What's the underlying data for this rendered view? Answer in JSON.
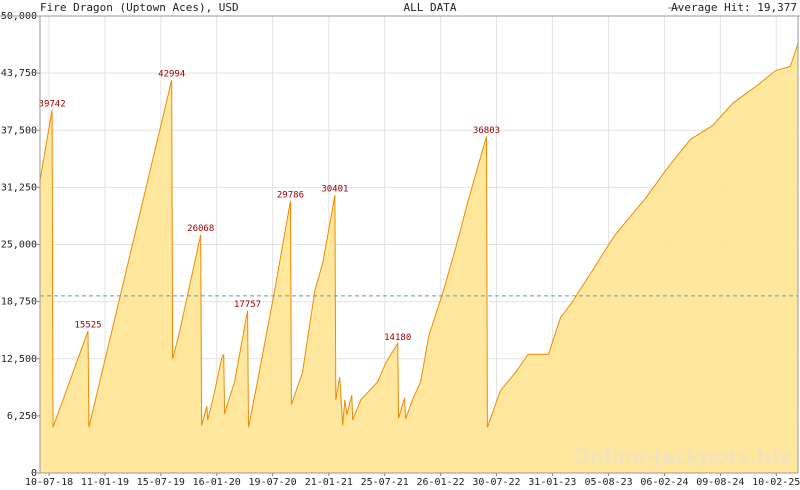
{
  "chart_data": {
    "type": "area",
    "title": "Fire Dragon (Uptown Aces), USD",
    "subtitle": "ALL DATA",
    "watermark": "Online-Jackpots.biz",
    "average": {
      "label": "Average Hit: 19,377",
      "value": 19377,
      "color": "#5a9ab5"
    },
    "color": "#f08a00",
    "fill": "#ffe592",
    "grid": true,
    "xlim": [
      "2018-06-10",
      "2025-04-23"
    ],
    "xticks": [
      {
        "value": "2018-07-10",
        "label": "10-07-18"
      },
      {
        "value": "2019-01-11",
        "label": "11-01-19"
      },
      {
        "value": "2019-07-15",
        "label": "15-07-19"
      },
      {
        "value": "2020-01-16",
        "label": "16-01-20"
      },
      {
        "value": "2020-07-19",
        "label": "19-07-20"
      },
      {
        "value": "2021-01-21",
        "label": "21-01-21"
      },
      {
        "value": "2021-07-25",
        "label": "25-07-21"
      },
      {
        "value": "2022-01-26",
        "label": "26-01-22"
      },
      {
        "value": "2022-07-30",
        "label": "30-07-22"
      },
      {
        "value": "2023-01-31",
        "label": "31-01-23"
      },
      {
        "value": "2023-08-05",
        "label": "05-08-23"
      },
      {
        "value": "2024-02-06",
        "label": "06-02-24"
      },
      {
        "value": "2024-08-09",
        "label": "09-08-24"
      },
      {
        "value": "2025-02-10",
        "label": "10-02-25"
      }
    ],
    "ylim": [
      0,
      50000
    ],
    "yticks": [
      0,
      {
        "value": 6250,
        "label": "6,250"
      },
      {
        "value": 12500,
        "label": "12,500"
      },
      {
        "value": 18750,
        "label": "18,750"
      },
      {
        "value": 25000,
        "label": "25,000"
      },
      {
        "value": 31250,
        "label": "31,250"
      },
      {
        "value": 37500,
        "label": "37,500"
      },
      {
        "value": 43750,
        "label": "43,750"
      },
      {
        "value": 50000,
        "label": "50,000"
      }
    ],
    "x": [
      "2018-06-10",
      "2018-07-20",
      "2018-07-23",
      "2018-11-16",
      "2018-11-19",
      "2019-08-20",
      "2019-08-23",
      "2019-09-12",
      "2019-10-15",
      "2019-11-24",
      "2019-11-27",
      "2019-12-14",
      "2019-12-17",
      "2020-01-03",
      "2020-02-01",
      "2020-02-08",
      "2020-02-11",
      "2020-03-15",
      "2020-04-27",
      "2020-04-30",
      "2020-05-30",
      "2020-07-26",
      "2020-09-16",
      "2020-09-19",
      "2020-10-26",
      "2020-12-06",
      "2021-01-01",
      "2021-02-10",
      "2021-02-13",
      "2021-02-26",
      "2021-03-08",
      "2021-03-15",
      "2021-03-22",
      "2021-04-07",
      "2021-04-10",
      "2021-05-07",
      "2021-07-02",
      "2021-07-28",
      "2021-09-06",
      "2021-09-09",
      "2021-09-29",
      "2021-10-02",
      "2021-10-25",
      "2021-11-21",
      "2021-12-18",
      "2022-02-05",
      "2022-03-20",
      "2022-04-29",
      "2022-06-27",
      "2022-06-30",
      "2022-08-12",
      "2022-10-01",
      "2022-11-12",
      "2023-01-18",
      "2023-02-27",
      "2023-04-08",
      "2023-06-19",
      "2023-08-25",
      "2023-12-04",
      "2024-02-19",
      "2024-05-02",
      "2024-07-14",
      "2024-09-21",
      "2024-12-13",
      "2025-02-07",
      "2025-03-29",
      "2025-04-23"
    ],
    "values": [
      32000,
      39742,
      5000,
      15525,
      5000,
      42994,
      12500,
      15000,
      20000,
      26068,
      5200,
      7300,
      5800,
      8000,
      12500,
      13000,
      6500,
      10000,
      17757,
      5000,
      10000,
      20000,
      29786,
      7500,
      11000,
      20000,
      23000,
      30401,
      8000,
      10500,
      5200,
      8000,
      6400,
      8500,
      5800,
      8000,
      10000,
      12000,
      14180,
      6000,
      8200,
      5900,
      8000,
      10000,
      15000,
      20000,
      25000,
      30000,
      36803,
      5000,
      9000,
      11000,
      13000,
      13000,
      17000,
      18750,
      22500,
      26000,
      30000,
      33500,
      36500,
      38000,
      40500,
      42500,
      44000,
      44500,
      47000
    ],
    "value_labels": [
      null,
      "39742",
      null,
      "15525",
      null,
      "42994",
      null,
      null,
      null,
      "26068",
      null,
      null,
      null,
      null,
      null,
      null,
      null,
      null,
      "17757",
      null,
      null,
      null,
      "29786",
      null,
      null,
      null,
      null,
      "30401",
      null,
      null,
      null,
      null,
      null,
      null,
      null,
      null,
      null,
      null,
      "14180",
      null,
      null,
      null,
      null,
      null,
      null,
      null,
      null,
      null,
      "36803",
      null,
      null,
      null,
      null,
      null,
      null,
      null,
      null,
      null,
      null,
      null,
      null,
      null,
      null,
      null,
      null,
      null,
      null
    ]
  }
}
